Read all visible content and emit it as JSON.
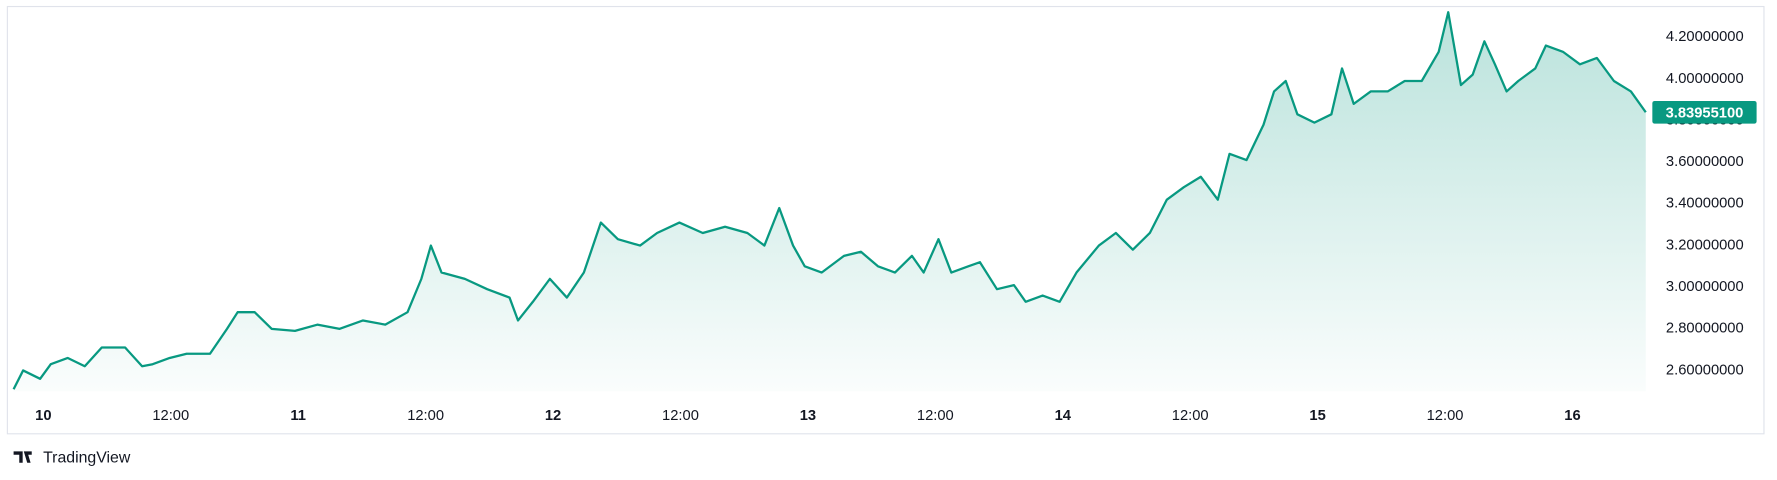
{
  "chart_data": {
    "type": "area",
    "attribution": "TradingView",
    "color": "#089981",
    "x": [
      -2.8,
      -1.9,
      -0.3,
      0.7,
      2.3,
      3.9,
      5.5,
      7.7,
      9.3,
      10.3,
      11.9,
      13.5,
      15.7,
      17.3,
      18.3,
      19.9,
      21.5,
      23.7,
      25.8,
      27.9,
      30.1,
      32.2,
      34.3,
      35.6,
      36.5,
      37.5,
      39.7,
      41.8,
      43.9,
      44.7,
      46.1,
      47.7,
      49.3,
      50.9,
      52.5,
      54.1,
      56.2,
      57.8,
      59.9,
      62.1,
      64.2,
      66.3,
      67.9,
      69.3,
      70.6,
      71.7,
      73.3,
      75.4,
      77.0,
      78.6,
      80.2,
      81.8,
      82.9,
      84.3,
      85.5,
      87.1,
      88.2,
      89.8,
      91.4,
      92.5,
      94.1,
      95.7,
      97.3,
      99.4,
      101.0,
      102.6,
      104.2,
      105.8,
      107.4,
      109.0,
      110.6,
      111.7,
      113.3,
      114.9,
      115.9,
      117.0,
      118.1,
      119.7,
      121.3,
      122.3,
      123.4,
      125.0,
      126.6,
      128.2,
      129.8,
      131.4,
      132.3,
      133.5,
      134.6,
      135.7,
      136.7,
      137.8,
      138.9,
      140.5,
      141.5,
      143.1,
      144.7,
      146.3,
      147.9,
      149.5,
      150.9
    ],
    "values": [
      2.51,
      2.6,
      2.56,
      2.63,
      2.66,
      2.62,
      2.71,
      2.71,
      2.62,
      2.63,
      2.66,
      2.68,
      2.68,
      2.8,
      2.88,
      2.88,
      2.8,
      2.79,
      2.82,
      2.8,
      2.84,
      2.82,
      2.88,
      3.04,
      3.2,
      3.07,
      3.04,
      2.99,
      2.95,
      2.84,
      2.93,
      3.04,
      2.95,
      3.07,
      3.31,
      3.23,
      3.2,
      3.26,
      3.31,
      3.26,
      3.29,
      3.26,
      3.2,
      3.38,
      3.2,
      3.1,
      3.07,
      3.15,
      3.17,
      3.1,
      3.07,
      3.15,
      3.07,
      3.23,
      3.07,
      3.1,
      3.12,
      2.99,
      3.01,
      2.93,
      2.96,
      2.93,
      3.07,
      3.2,
      3.26,
      3.18,
      3.26,
      3.42,
      3.48,
      3.53,
      3.42,
      3.64,
      3.61,
      3.78,
      3.94,
      3.99,
      3.83,
      3.79,
      3.83,
      4.05,
      3.88,
      3.94,
      3.94,
      3.99,
      3.99,
      4.13,
      4.32,
      3.97,
      4.02,
      4.18,
      4.07,
      3.94,
      3.99,
      4.05,
      4.16,
      4.13,
      4.07,
      4.1,
      3.99,
      3.94,
      3.839551
    ],
    "last_value": {
      "value": 3.839551,
      "label": "3.83955100"
    },
    "xlim": [
      -2.8,
      151.2
    ],
    "xticks": [
      {
        "value": 0,
        "label": "10"
      },
      {
        "value": 12,
        "label": "12:00"
      },
      {
        "value": 24,
        "label": "11"
      },
      {
        "value": 36,
        "label": "12:00"
      },
      {
        "value": 48,
        "label": "12"
      },
      {
        "value": 60,
        "label": "12:00"
      },
      {
        "value": 72,
        "label": "13"
      },
      {
        "value": 84,
        "label": "12:00"
      },
      {
        "value": 96,
        "label": "14"
      },
      {
        "value": 108,
        "label": "12:00"
      },
      {
        "value": 120,
        "label": "15"
      },
      {
        "value": 132,
        "label": "12:00"
      },
      {
        "value": 144,
        "label": "16"
      }
    ],
    "ylim": [
      2.5,
      4.35
    ],
    "yticks": [
      {
        "value": 2.6,
        "label": "2.60000000"
      },
      {
        "value": 2.8,
        "label": "2.80000000"
      },
      {
        "value": 3.0,
        "label": "3.00000000"
      },
      {
        "value": 3.2,
        "label": "3.20000000"
      },
      {
        "value": 3.4,
        "label": "3.40000000"
      },
      {
        "value": 3.6,
        "label": "3.60000000"
      },
      {
        "value": 3.8,
        "label": "3.80000000"
      },
      {
        "value": 4.0,
        "label": "4.00000000"
      },
      {
        "value": 4.2,
        "label": "4.20000000"
      }
    ],
    "grid": false
  }
}
